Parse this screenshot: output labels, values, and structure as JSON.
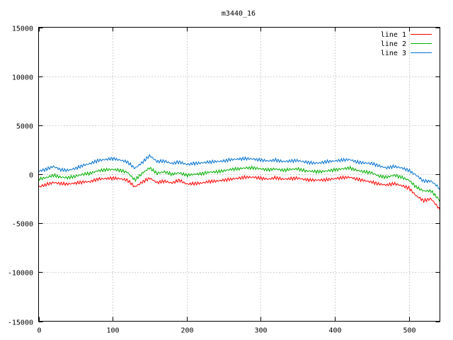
{
  "chart_data": {
    "type": "line",
    "title": "m3440_16",
    "xlabel": "",
    "ylabel": "",
    "xlim": [
      0,
      542
    ],
    "ylim": [
      -15000,
      15000
    ],
    "x_ticks": [
      0,
      100,
      200,
      300,
      400,
      500
    ],
    "y_ticks": [
      -15000,
      -10000,
      -5000,
      0,
      5000,
      10000,
      15000
    ],
    "grid": true,
    "legend_position": "top-right",
    "x": [
      0,
      10,
      20,
      30,
      40,
      50,
      60,
      70,
      80,
      90,
      100,
      110,
      120,
      130,
      140,
      150,
      160,
      170,
      180,
      190,
      200,
      210,
      220,
      230,
      240,
      250,
      260,
      270,
      280,
      290,
      300,
      310,
      320,
      330,
      340,
      350,
      360,
      370,
      380,
      390,
      400,
      410,
      420,
      430,
      440,
      450,
      460,
      470,
      480,
      490,
      500,
      510,
      520,
      530,
      540,
      542
    ],
    "series": [
      {
        "name": "line 1",
        "color": "#ff0000",
        "values": [
          -1300,
          -1050,
          -850,
          -950,
          -1000,
          -900,
          -800,
          -750,
          -500,
          -450,
          -400,
          -450,
          -600,
          -1300,
          -800,
          -400,
          -850,
          -700,
          -900,
          -600,
          -1000,
          -950,
          -900,
          -750,
          -700,
          -600,
          -500,
          -400,
          -300,
          -300,
          -400,
          -500,
          -350,
          -500,
          -450,
          -400,
          -550,
          -600,
          -600,
          -550,
          -450,
          -350,
          -300,
          -500,
          -650,
          -800,
          -1000,
          -1100,
          -950,
          -1150,
          -1400,
          -2200,
          -2700,
          -2500,
          -3400,
          -3700
        ]
      },
      {
        "name": "line 2",
        "color": "#00b000",
        "values": [
          -500,
          -350,
          -100,
          -300,
          -350,
          -200,
          0,
          100,
          350,
          450,
          500,
          400,
          200,
          -600,
          100,
          650,
          100,
          250,
          0,
          150,
          -100,
          0,
          50,
          200,
          250,
          350,
          500,
          550,
          650,
          650,
          550,
          450,
          550,
          400,
          500,
          550,
          350,
          300,
          250,
          350,
          450,
          550,
          650,
          400,
          250,
          150,
          -200,
          -300,
          -100,
          -300,
          -600,
          -1300,
          -1700,
          -1700,
          -2500,
          -2800
        ]
      },
      {
        "name": "line 3",
        "color": "#0070d0",
        "values": [
          300,
          500,
          800,
          450,
          400,
          600,
          900,
          1100,
          1400,
          1500,
          1600,
          1450,
          1250,
          600,
          1200,
          1900,
          1300,
          1350,
          1100,
          1250,
          1000,
          1100,
          1150,
          1250,
          1300,
          1350,
          1500,
          1550,
          1600,
          1550,
          1450,
          1350,
          1450,
          1300,
          1350,
          1400,
          1250,
          1150,
          1150,
          1300,
          1350,
          1450,
          1500,
          1250,
          1150,
          1100,
          850,
          650,
          800,
          650,
          400,
          -100,
          -700,
          -700,
          -1300,
          -1600
        ]
      }
    ]
  }
}
